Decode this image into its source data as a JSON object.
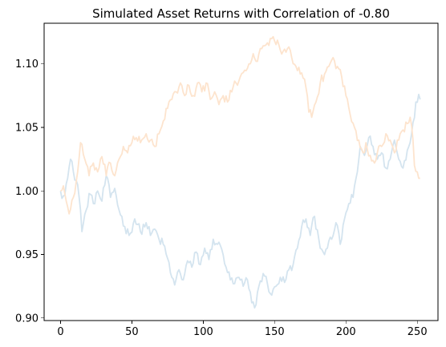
{
  "chart_data": {
    "type": "line",
    "title": "Simulated Asset Returns with Correlation of -0.80",
    "xlabel": "",
    "ylabel": "",
    "xlim": [
      -11.5,
      264.5
    ],
    "ylim": [
      0.898,
      1.132
    ],
    "xticks": [
      0,
      50,
      100,
      150,
      200,
      250
    ],
    "yticks": [
      0.9,
      0.95,
      1.0,
      1.05,
      1.1
    ],
    "ytick_labels": [
      "0.90",
      "0.95",
      "1.00",
      "1.05",
      "1.10"
    ],
    "grid": false,
    "legend": "none",
    "series": [
      {
        "color": "#d4e4ef",
        "anchors": [
          [
            0,
            1.0
          ],
          [
            2,
            0.996
          ],
          [
            5,
            1.01
          ],
          [
            7,
            1.025
          ],
          [
            9,
            1.015
          ],
          [
            12,
            1.005
          ],
          [
            14,
            0.985
          ],
          [
            15,
            0.968
          ],
          [
            18,
            0.985
          ],
          [
            20,
            0.998
          ],
          [
            23,
            0.99
          ],
          [
            26,
            1.0
          ],
          [
            29,
            0.992
          ],
          [
            32,
            1.012
          ],
          [
            35,
            0.995
          ],
          [
            38,
            1.002
          ],
          [
            41,
            0.985
          ],
          [
            45,
            0.972
          ],
          [
            48,
            0.965
          ],
          [
            52,
            0.978
          ],
          [
            56,
            0.968
          ],
          [
            60,
            0.975
          ],
          [
            63,
            0.965
          ],
          [
            66,
            0.97
          ],
          [
            69,
            0.962
          ],
          [
            72,
            0.958
          ],
          [
            75,
            0.947
          ],
          [
            78,
            0.932
          ],
          [
            80,
            0.926
          ],
          [
            83,
            0.938
          ],
          [
            86,
            0.93
          ],
          [
            89,
            0.945
          ],
          [
            92,
            0.94
          ],
          [
            95,
            0.952
          ],
          [
            98,
            0.942
          ],
          [
            101,
            0.955
          ],
          [
            104,
            0.946
          ],
          [
            107,
            0.962
          ],
          [
            110,
            0.958
          ],
          [
            113,
            0.954
          ],
          [
            116,
            0.94
          ],
          [
            119,
            0.93
          ],
          [
            122,
            0.927
          ],
          [
            125,
            0.932
          ],
          [
            128,
            0.925
          ],
          [
            131,
            0.93
          ],
          [
            134,
            0.912
          ],
          [
            136,
            0.908
          ],
          [
            139,
            0.925
          ],
          [
            142,
            0.935
          ],
          [
            145,
            0.927
          ],
          [
            148,
            0.918
          ],
          [
            151,
            0.925
          ],
          [
            154,
            0.932
          ],
          [
            157,
            0.928
          ],
          [
            160,
            0.938
          ],
          [
            163,
            0.942
          ],
          [
            166,
            0.955
          ],
          [
            169,
            0.972
          ],
          [
            172,
            0.978
          ],
          [
            175,
            0.965
          ],
          [
            178,
            0.98
          ],
          [
            181,
            0.962
          ],
          [
            184,
            0.952
          ],
          [
            187,
            0.955
          ],
          [
            190,
            0.962
          ],
          [
            193,
            0.975
          ],
          [
            196,
            0.958
          ],
          [
            199,
            0.978
          ],
          [
            202,
            0.99
          ],
          [
            205,
            0.995
          ],
          [
            208,
            1.015
          ],
          [
            210,
            1.035
          ],
          [
            213,
            1.028
          ],
          [
            216,
            1.042
          ],
          [
            219,
            1.035
          ],
          [
            222,
            1.025
          ],
          [
            225,
            1.03
          ],
          [
            228,
            1.018
          ],
          [
            231,
            1.025
          ],
          [
            234,
            1.04
          ],
          [
            237,
            1.025
          ],
          [
            240,
            1.018
          ],
          [
            243,
            1.032
          ],
          [
            246,
            1.045
          ],
          [
            249,
            1.07
          ],
          [
            251,
            1.076
          ],
          [
            252,
            1.072
          ]
        ]
      },
      {
        "color": "#fde4ce",
        "anchors": [
          [
            0,
            1.0
          ],
          [
            2,
            1.004
          ],
          [
            4,
            0.992
          ],
          [
            6,
            0.982
          ],
          [
            9,
            0.995
          ],
          [
            12,
            1.015
          ],
          [
            14,
            1.038
          ],
          [
            17,
            1.025
          ],
          [
            20,
            1.012
          ],
          [
            23,
            1.022
          ],
          [
            26,
            1.015
          ],
          [
            29,
            1.027
          ],
          [
            32,
            1.012
          ],
          [
            35,
            1.022
          ],
          [
            38,
            1.012
          ],
          [
            41,
            1.025
          ],
          [
            44,
            1.035
          ],
          [
            47,
            1.03
          ],
          [
            50,
            1.038
          ],
          [
            53,
            1.042
          ],
          [
            56,
            1.038
          ],
          [
            60,
            1.045
          ],
          [
            63,
            1.04
          ],
          [
            66,
            1.035
          ],
          [
            69,
            1.045
          ],
          [
            72,
            1.055
          ],
          [
            75,
            1.065
          ],
          [
            78,
            1.072
          ],
          [
            81,
            1.078
          ],
          [
            84,
            1.085
          ],
          [
            87,
            1.075
          ],
          [
            90,
            1.083
          ],
          [
            93,
            1.075
          ],
          [
            96,
            1.085
          ],
          [
            99,
            1.078
          ],
          [
            102,
            1.085
          ],
          [
            105,
            1.072
          ],
          [
            108,
            1.078
          ],
          [
            111,
            1.068
          ],
          [
            114,
            1.075
          ],
          [
            117,
            1.07
          ],
          [
            120,
            1.078
          ],
          [
            123,
            1.085
          ],
          [
            126,
            1.09
          ],
          [
            129,
            1.095
          ],
          [
            132,
            1.1
          ],
          [
            135,
            1.108
          ],
          [
            138,
            1.102
          ],
          [
            141,
            1.112
          ],
          [
            144,
            1.115
          ],
          [
            147,
            1.12
          ],
          [
            150,
            1.118
          ],
          [
            153,
            1.115
          ],
          [
            156,
            1.11
          ],
          [
            159,
            1.112
          ],
          [
            162,
            1.105
          ],
          [
            165,
            1.098
          ],
          [
            168,
            1.092
          ],
          [
            171,
            1.088
          ],
          [
            174,
            1.062
          ],
          [
            176,
            1.058
          ],
          [
            179,
            1.07
          ],
          [
            182,
            1.085
          ],
          [
            185,
            1.092
          ],
          [
            188,
            1.098
          ],
          [
            191,
            1.105
          ],
          [
            194,
            1.098
          ],
          [
            197,
            1.09
          ],
          [
            200,
            1.075
          ],
          [
            203,
            1.06
          ],
          [
            206,
            1.05
          ],
          [
            209,
            1.04
          ],
          [
            212,
            1.03
          ],
          [
            214,
            1.038
          ],
          [
            217,
            1.028
          ],
          [
            220,
            1.022
          ],
          [
            222,
            1.03
          ],
          [
            225,
            1.035
          ],
          [
            228,
            1.045
          ],
          [
            231,
            1.04
          ],
          [
            234,
            1.03
          ],
          [
            237,
            1.04
          ],
          [
            240,
            1.048
          ],
          [
            243,
            1.053
          ],
          [
            245,
            1.058
          ],
          [
            247,
            1.04
          ],
          [
            248,
            1.02
          ],
          [
            250,
            1.015
          ],
          [
            251,
            1.01
          ],
          [
            252,
            1.01
          ]
        ]
      }
    ]
  }
}
